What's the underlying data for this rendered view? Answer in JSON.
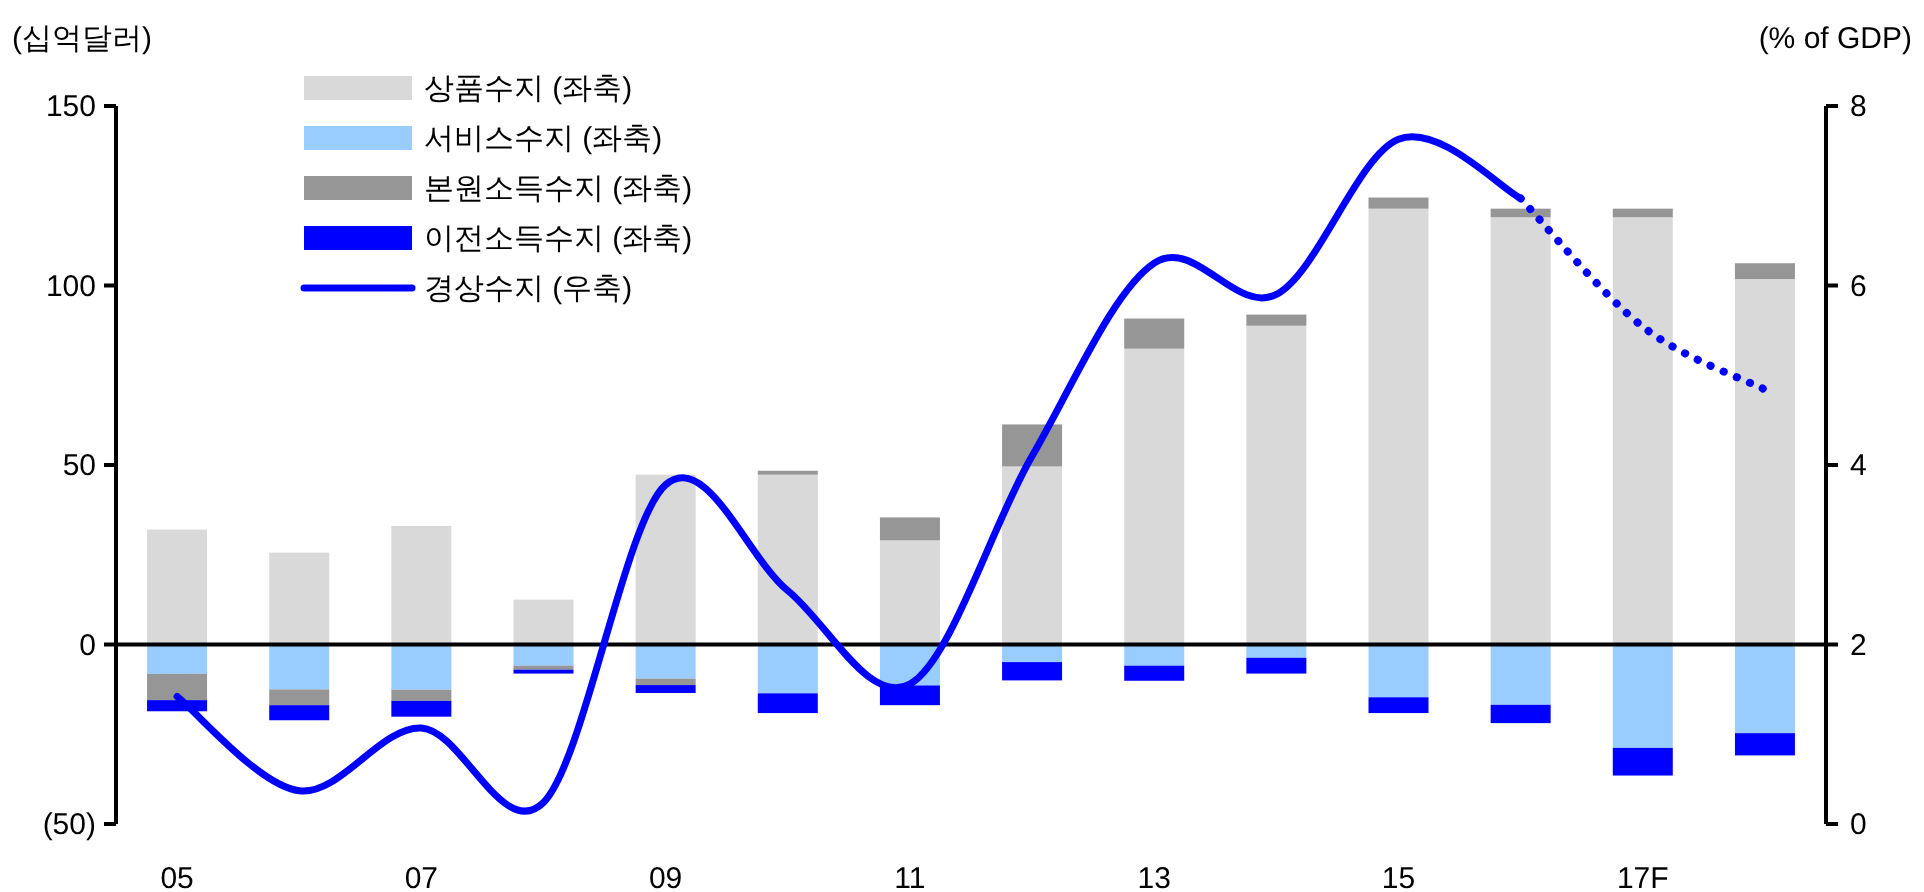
{
  "chart_data": {
    "type": "bar",
    "stacked": true,
    "ylabel": "(십억달러)",
    "y2label": "(% of GDP)",
    "categories": [
      "05",
      null,
      "07",
      null,
      "09",
      null,
      "11",
      null,
      "13",
      null,
      "15",
      null,
      "17F",
      null
    ],
    "ylim": [
      -50,
      150
    ],
    "yticks": [
      {
        "value": -50,
        "label": "(50)"
      },
      0,
      50,
      100,
      150
    ],
    "y2lim": [
      0,
      8
    ],
    "y2ticks": [
      0,
      2,
      4,
      6,
      8
    ],
    "legend": "top left",
    "marker": "none",
    "series": [
      {
        "name": "상품수지 (좌축)",
        "type": "bar",
        "color": "#d9d9d9",
        "values": [
          32,
          25.6,
          33,
          12.5,
          47.3,
          47.3,
          29,
          49.6,
          82.4,
          88.8,
          121.4,
          119,
          119,
          101.8
        ]
      },
      {
        "name": "서비스수지 (좌축)",
        "type": "bar",
        "color": "#99ccff",
        "values": [
          -8.2,
          -12.5,
          -12.6,
          -5.9,
          -9.5,
          -13.6,
          -11.4,
          -4.9,
          -5.9,
          -3.7,
          -14.7,
          -16.8,
          -28.8,
          -24.7
        ]
      },
      {
        "name": "본원소득수지 (좌축)",
        "type": "bar",
        "color": "#969696",
        "values": [
          -7.3,
          -4.4,
          -3.1,
          -1.1,
          -1.8,
          1.1,
          6.4,
          11.7,
          8.4,
          3.1,
          3.1,
          2.4,
          2.4,
          4.4
        ]
      },
      {
        "name": "이전소득수지 (좌축)",
        "type": "bar",
        "color": "#0000ff",
        "values": [
          -3.1,
          -4.2,
          -4.4,
          -1.1,
          -2.2,
          -5.5,
          -5.5,
          -5.1,
          -4.2,
          -4.4,
          -4.4,
          -5.1,
          -7.7,
          -6.2
        ]
      },
      {
        "name": "경상수지 (우축)",
        "type": "line",
        "axis": "y2",
        "color": "#0000ff",
        "line_style": "solid",
        "values": [
          1.42,
          0.37,
          1.07,
          0.24,
          3.78,
          2.6,
          1.56,
          4.1,
          6.25,
          5.9,
          7.63,
          6.97,
          null,
          null
        ]
      },
      {
        "type": "line",
        "axis": "y2",
        "color": "#0000ff",
        "line_style": "dotted",
        "values": [
          null,
          null,
          null,
          null,
          null,
          null,
          null,
          null,
          null,
          null,
          null,
          6.97,
          5.54,
          4.84
        ]
      }
    ]
  }
}
